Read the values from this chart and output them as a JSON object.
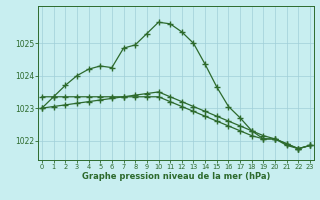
{
  "line1_y": [
    1023.0,
    1023.35,
    1023.7,
    1024.0,
    1024.2,
    1024.3,
    1024.25,
    1024.85,
    1024.95,
    1025.3,
    1025.65,
    1025.6,
    1025.35,
    1025.0,
    1024.35,
    1023.65,
    1023.05,
    1022.7,
    1022.3,
    1022.05,
    1022.05,
    1021.85,
    1021.75,
    1021.85
  ],
  "line2_y": [
    1023.35,
    1023.35,
    1023.35,
    1023.35,
    1023.35,
    1023.35,
    1023.35,
    1023.35,
    1023.35,
    1023.35,
    1023.35,
    1023.2,
    1023.05,
    1022.9,
    1022.75,
    1022.6,
    1022.45,
    1022.3,
    1022.15,
    1022.05,
    1022.05,
    1021.9,
    1021.75,
    1021.85
  ],
  "line3_y": [
    1023.0,
    1023.05,
    1023.1,
    1023.15,
    1023.2,
    1023.25,
    1023.3,
    1023.35,
    1023.4,
    1023.45,
    1023.5,
    1023.35,
    1023.2,
    1023.05,
    1022.9,
    1022.75,
    1022.6,
    1022.45,
    1022.3,
    1022.15,
    1022.05,
    1021.9,
    1021.75,
    1021.85
  ],
  "x": [
    0,
    1,
    2,
    3,
    4,
    5,
    6,
    7,
    8,
    9,
    10,
    11,
    12,
    13,
    14,
    15,
    16,
    17,
    18,
    19,
    20,
    21,
    22,
    23
  ],
  "line_color": "#2d6a2d",
  "bg_color": "#c8eef0",
  "grid_color": "#a0cfd8",
  "text_color": "#2d6a2d",
  "xlabel": "Graphe pression niveau de la mer (hPa)",
  "ylim_min": 1021.4,
  "ylim_max": 1026.15,
  "xlim_min": -0.3,
  "xlim_max": 23.3,
  "yticks": [
    1022,
    1023,
    1024,
    1025
  ],
  "xticks": [
    0,
    1,
    2,
    3,
    4,
    5,
    6,
    7,
    8,
    9,
    10,
    11,
    12,
    13,
    14,
    15,
    16,
    17,
    18,
    19,
    20,
    21,
    22,
    23
  ]
}
